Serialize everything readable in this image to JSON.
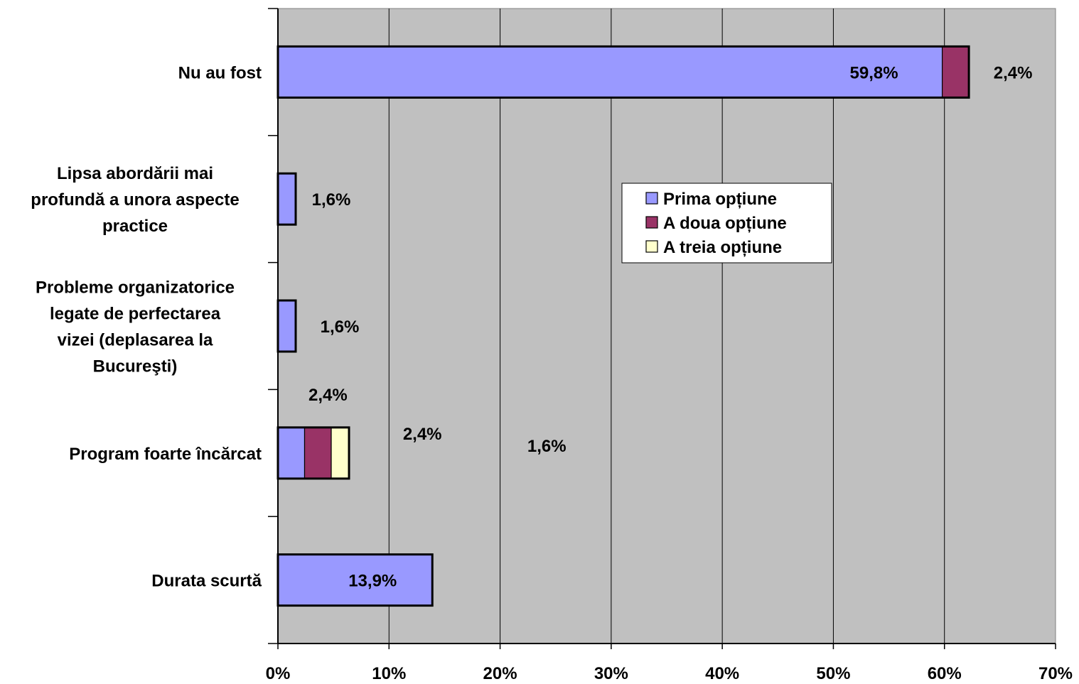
{
  "chart_data": {
    "type": "bar",
    "orientation": "horizontal",
    "stacked": true,
    "categories": [
      "Nu au fost",
      "Lipsa abordării mai profundă a unora aspecte practice",
      "Probleme organizatorice legate de perfectarea vizei (deplasarea la Bucureşti)",
      "Program foarte încărcat",
      "Durata scurtă"
    ],
    "category_lines": [
      [
        "Nu au fost"
      ],
      [
        "Lipsa abordării mai",
        "profundă a unora aspecte",
        "practice"
      ],
      [
        "Probleme organizatorice",
        "legate de perfectarea",
        "vizei (deplasarea la",
        "Bucureşti)"
      ],
      [
        "Program foarte încărcat"
      ],
      [
        "Durata scurtă"
      ]
    ],
    "series": [
      {
        "name": "Prima opțiune",
        "color": "#9999ff",
        "values": [
          59.8,
          1.6,
          1.6,
          2.4,
          13.9
        ]
      },
      {
        "name": "A doua opțiune",
        "color": "#993366",
        "values": [
          2.4,
          0,
          0,
          2.4,
          0
        ]
      },
      {
        "name": "A treia opțiune",
        "color": "#ffffcc",
        "values": [
          0,
          0,
          0,
          1.6,
          0
        ]
      }
    ],
    "data_labels": [
      {
        "category": 0,
        "series": 0,
        "text": "59,8%"
      },
      {
        "category": 0,
        "series": 1,
        "text": "2,4%"
      },
      {
        "category": 1,
        "series": 0,
        "text": "1,6%"
      },
      {
        "category": 2,
        "series": 0,
        "text": "1,6%"
      },
      {
        "category": 3,
        "series": 0,
        "text": "2,4%"
      },
      {
        "category": 3,
        "series": 1,
        "text": "2,4%"
      },
      {
        "category": 3,
        "series": 2,
        "text": "1,6%"
      },
      {
        "category": 4,
        "series": 0,
        "text": "13,9%"
      }
    ],
    "xlim": [
      0,
      70
    ],
    "x_ticks": [
      0,
      10,
      20,
      30,
      40,
      50,
      60,
      70
    ],
    "x_tick_labels": [
      "0%",
      "10%",
      "20%",
      "30%",
      "40%",
      "50%",
      "60%",
      "70%"
    ],
    "plot_background": "#c0c0c0",
    "grid": true,
    "legend_position": "center-right"
  }
}
